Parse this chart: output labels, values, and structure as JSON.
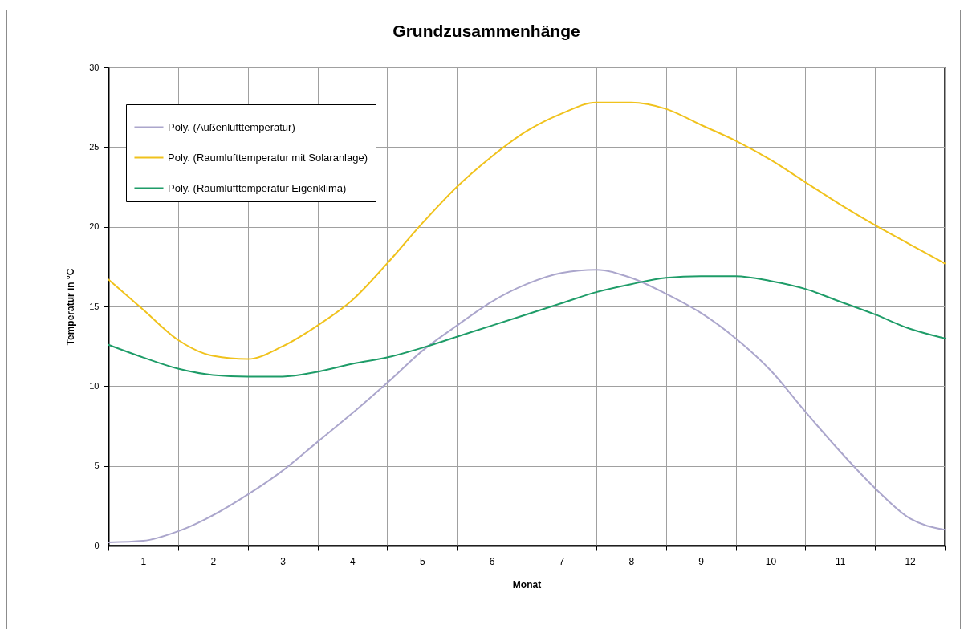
{
  "chart_data": {
    "type": "line",
    "title": "Grundzusammenhänge",
    "xlabel": "Monat",
    "ylabel": "Temperatur in °C",
    "x": [
      0.5,
      1,
      1.5,
      2,
      2.5,
      3,
      3.5,
      4,
      4.5,
      5,
      5.5,
      6,
      6.5,
      7,
      7.5,
      8,
      8.5,
      9,
      9.5,
      10,
      10.5,
      11,
      11.5,
      12,
      12.5
    ],
    "series": [
      {
        "name": "Poly. (Außenlufttemperatur)",
        "color": "#aba6cc",
        "values": [
          0.2,
          0.3,
          0.9,
          1.9,
          3.2,
          4.7,
          6.5,
          8.3,
          10.2,
          12.2,
          13.8,
          15.3,
          16.4,
          17.1,
          17.3,
          16.8,
          15.8,
          14.6,
          13.0,
          11.0,
          8.4,
          5.9,
          3.6,
          1.7,
          1.0
        ]
      },
      {
        "name": "Poly. (Raumlufttemperatur mit Solaranlage)",
        "color": "#f0c21c",
        "values": [
          16.7,
          14.8,
          12.9,
          11.9,
          11.7,
          12.5,
          13.8,
          15.4,
          17.7,
          20.2,
          22.5,
          24.4,
          26.0,
          27.1,
          27.8,
          27.8,
          27.4,
          26.4,
          25.4,
          24.2,
          22.8,
          21.4,
          20.1,
          18.9,
          17.7
        ]
      },
      {
        "name": "Poly. (Raumlufttemperatur Eigenklima)",
        "color": "#1e9c68",
        "values": [
          12.6,
          11.8,
          11.1,
          10.7,
          10.6,
          10.6,
          10.9,
          11.4,
          11.8,
          12.4,
          13.1,
          13.8,
          14.5,
          15.2,
          15.9,
          16.4,
          16.8,
          16.9,
          16.9,
          16.6,
          16.1,
          15.3,
          14.5,
          13.6,
          13.0
        ]
      }
    ],
    "xlim": [
      0.5,
      12.5
    ],
    "xticks": [
      {
        "value": 0.5,
        "label": null
      },
      1,
      {
        "value": 1.5,
        "label": null
      },
      2,
      {
        "value": 2.5,
        "label": null
      },
      3,
      {
        "value": 3.5,
        "label": null
      },
      4,
      {
        "value": 4.5,
        "label": null
      },
      5,
      {
        "value": 5.5,
        "label": null
      },
      6,
      {
        "value": 6.5,
        "label": null
      },
      7,
      {
        "value": 7.5,
        "label": null
      },
      8,
      {
        "value": 8.5,
        "label": null
      },
      9,
      {
        "value": 9.5,
        "label": null
      },
      10,
      {
        "value": 10.5,
        "label": null
      },
      11,
      {
        "value": 11.5,
        "label": null
      },
      12,
      {
        "value": 12.5,
        "label": null
      }
    ],
    "ylim": [
      0,
      30
    ],
    "yticks": [
      0,
      5,
      10,
      15,
      20,
      25,
      30
    ],
    "grid": true,
    "legend": "top left",
    "line_style": "solid"
  }
}
